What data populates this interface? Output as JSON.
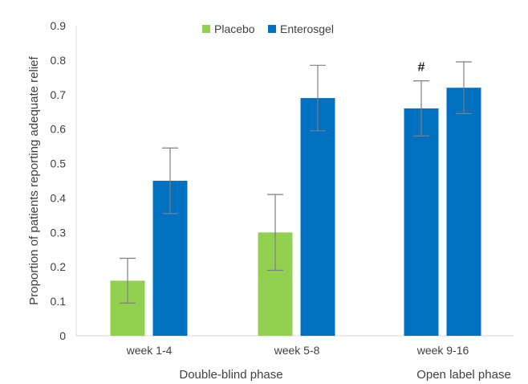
{
  "chart_data": {
    "type": "bar",
    "categories": [
      "week 1-4",
      "week 5-8",
      "week 9-16"
    ],
    "phase_labels": [
      "Double-blind phase",
      "Open label phase"
    ],
    "series": [
      {
        "name": "Placebo",
        "color": "#92D050",
        "values": [
          0.16,
          0.3,
          null
        ],
        "error": [
          0.065,
          0.11,
          null
        ]
      },
      {
        "name": "Enterosgel",
        "color": "#0070C0",
        "values": [
          0.45,
          0.69,
          null
        ],
        "error": [
          0.095,
          0.095,
          null
        ]
      }
    ],
    "open_label_bars": [
      {
        "category": "week 9-16",
        "color": "#0070C0",
        "value": 0.66,
        "error": 0.08,
        "annotation": "#"
      },
      {
        "category": "week 9-16",
        "color": "#0070C0",
        "value": 0.72,
        "error": 0.075,
        "annotation": ""
      }
    ],
    "ylabel": "Proportion of patients reporting adequate relief",
    "ylim": [
      0,
      0.9
    ],
    "yticks": [
      "0",
      "0.1",
      "0.2",
      "0.3",
      "0.4",
      "0.5",
      "0.6",
      "0.7",
      "0.8",
      "0.9"
    ],
    "grid": false,
    "legend_position": "top-center"
  }
}
